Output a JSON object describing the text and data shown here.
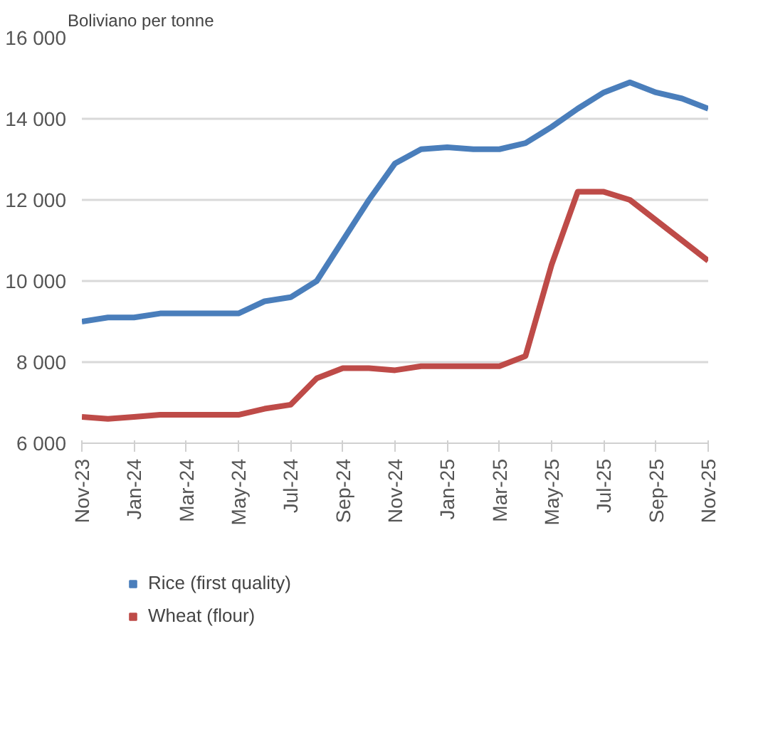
{
  "chart_data": {
    "type": "line",
    "ylabel": "Boliviano per tonne",
    "categories": [
      "Nov-23",
      null,
      "Jan-24",
      null,
      "Mar-24",
      null,
      "May-24",
      null,
      "Jul-24",
      null,
      "Sep-24",
      null,
      "Nov-24",
      null,
      "Jan-25",
      null,
      "Mar-25",
      null,
      "May-25",
      null,
      "Jul-25",
      null,
      "Sep-25",
      null,
      "Nov-25"
    ],
    "series": [
      {
        "name": "Rice (first quality)",
        "color": "#4a7ebb",
        "values": [
          9000,
          9100,
          9100,
          9200,
          9200,
          9200,
          9200,
          9500,
          9600,
          10000,
          11000,
          12000,
          12900,
          13250,
          13300,
          13250,
          13250,
          13400,
          13800,
          14250,
          14650,
          14900,
          14650,
          14500,
          14250
        ]
      },
      {
        "name": "Wheat (flour)",
        "color": "#be4b48",
        "values": [
          6650,
          6600,
          6650,
          6700,
          6700,
          6700,
          6700,
          6850,
          6950,
          7600,
          7850,
          7850,
          7800,
          7900,
          7900,
          7900,
          7900,
          8150,
          10400,
          12200,
          12200,
          12000,
          11500,
          11000,
          10500
        ]
      }
    ],
    "ylim": [
      6000,
      16000
    ],
    "yticks": [
      {
        "value": 6000,
        "label": "6 000"
      },
      {
        "value": 8000,
        "label": "8 000"
      },
      {
        "value": 10000,
        "label": "10 000"
      },
      {
        "value": 12000,
        "label": "12 000"
      },
      {
        "value": 14000,
        "label": "14 000"
      },
      {
        "value": 16000,
        "label": "16 000"
      }
    ],
    "grid": "y",
    "legend": "bottom left",
    "marker": "none",
    "line_style": "solid"
  }
}
